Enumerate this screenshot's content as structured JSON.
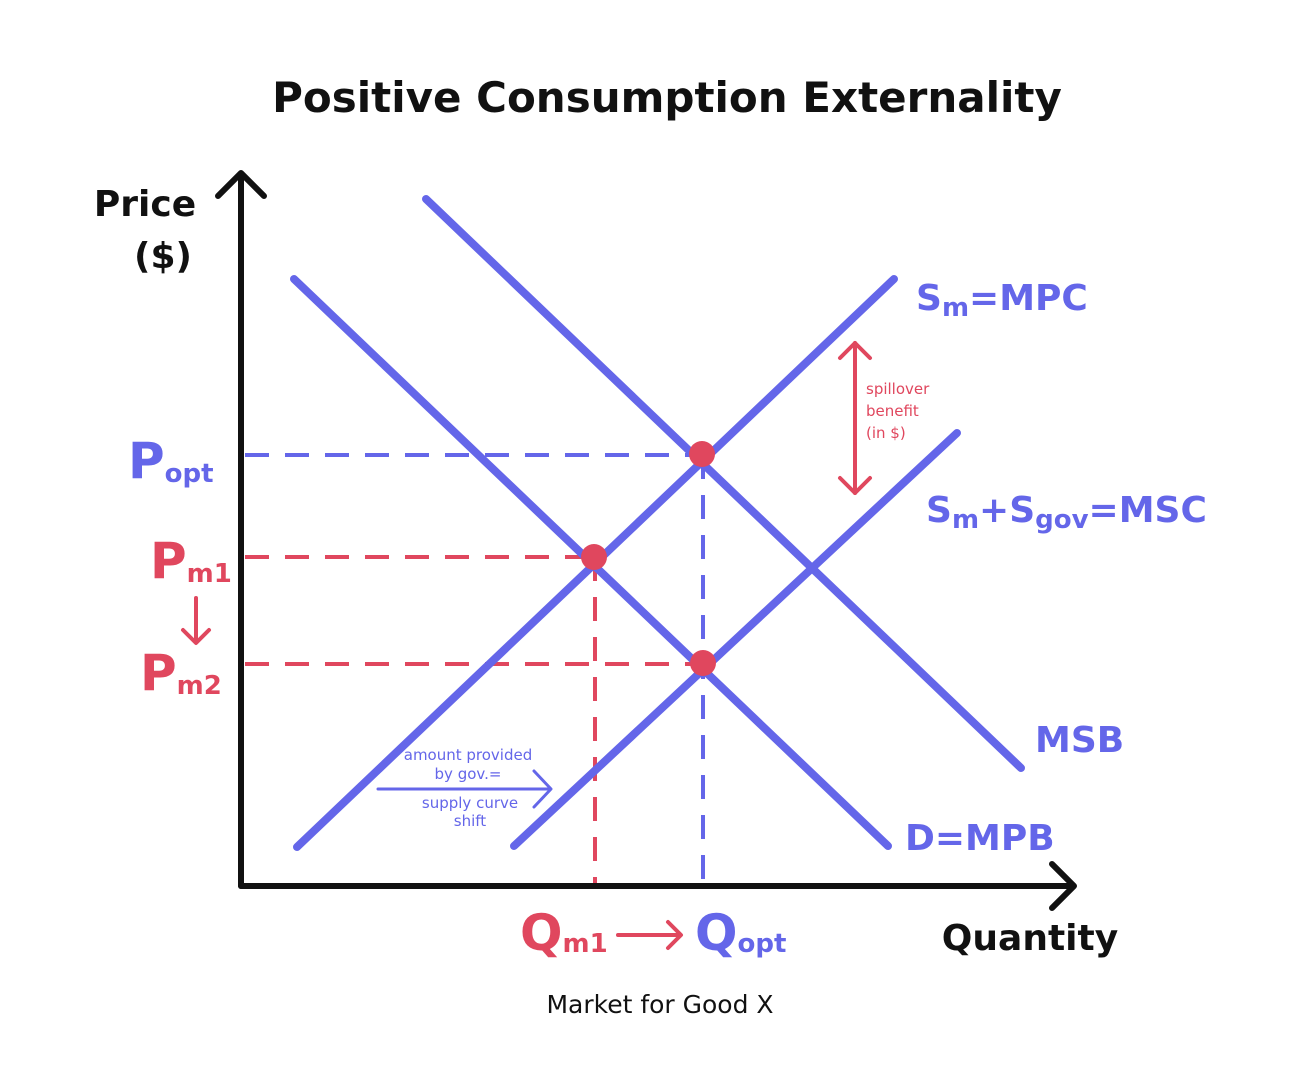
{
  "title": "Positive Consumption Externality",
  "caption": "Market for Good X",
  "axes": {
    "y_label_line1": "Price",
    "y_label_line2": "($)",
    "x_label": "Quantity"
  },
  "curves": {
    "mpc": {
      "main": "S",
      "sub": "m",
      "rest": "=MPC"
    },
    "msc": {
      "part1": "S",
      "sub1": "m",
      "part2": "+S",
      "sub2": "gov",
      "rest": "=MSC"
    },
    "msb": "MSB",
    "mpb": "D=MPB"
  },
  "prices": {
    "p_opt": {
      "main": "P",
      "sub": "opt"
    },
    "p_m1": {
      "main": "P",
      "sub": "m1"
    },
    "p_m2": {
      "main": "P",
      "sub": "m2"
    }
  },
  "quantities": {
    "q_m1": {
      "main": "Q",
      "sub": "m1"
    },
    "q_opt": {
      "main": "Q",
      "sub": "opt"
    }
  },
  "annotations": {
    "spillover": [
      "spillover",
      "benefit",
      "(in $)"
    ],
    "shift": [
      "amount provided",
      "by gov.=",
      "supply curve",
      "shift"
    ]
  },
  "colors": {
    "blue": "#6466E9",
    "red": "#E0475E",
    "black": "#111111"
  }
}
